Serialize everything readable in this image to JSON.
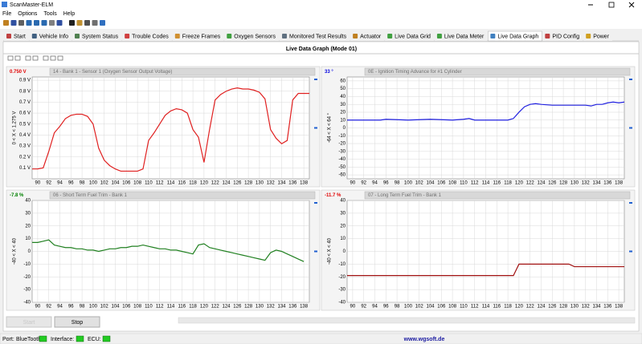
{
  "window": {
    "title": "ScanMaster-ELM"
  },
  "menu": [
    "File",
    "Options",
    "Tools",
    "Help"
  ],
  "tabs": [
    "Start",
    "Vehicle Info",
    "System Status",
    "Trouble Codes",
    "Freeze Frames",
    "Oxygen Sensors",
    "Monitored Test Results",
    "Actuator",
    "Live Data Grid",
    "Live Data Meter",
    "Live Data Graph",
    "PID Config",
    "Power"
  ],
  "panel_title": "Live Data Graph (Mode 01)",
  "chart_data": [
    {
      "type": "line",
      "title": "14 - Bank 1 - Sensor 1 (Oxygen Sensor Output Voltage)",
      "current_value": "0.750 V",
      "ylabel": "0 < X < 1.275 V",
      "xlim": [
        89,
        139
      ],
      "xticks": [
        90,
        92,
        94,
        96,
        98,
        100,
        102,
        104,
        106,
        108,
        110,
        112,
        114,
        116,
        118,
        120,
        122,
        124,
        126,
        128,
        130,
        132,
        134,
        136,
        138
      ],
      "ylim": [
        0,
        0.93
      ],
      "yticks": [
        {
          "value": 0.1,
          "label": "0.1 V"
        },
        {
          "value": 0.2,
          "label": "0.2 V"
        },
        {
          "value": 0.3,
          "label": "0.3 V"
        },
        {
          "value": 0.4,
          "label": "0.4 V"
        },
        {
          "value": 0.5,
          "label": "0.5 V"
        },
        {
          "value": 0.6,
          "label": "0.6 V"
        },
        {
          "value": 0.7,
          "label": "0.7 V"
        },
        {
          "value": 0.8,
          "label": "0.8 V"
        },
        {
          "value": 0.9,
          "label": "0.9 V"
        }
      ],
      "grid": true,
      "value_color": "#e00000",
      "series": [
        {
          "color": "#e02020",
          "x": [
            89,
            90,
            91,
            92,
            93,
            94,
            95,
            96,
            97,
            98,
            99,
            100,
            101,
            102,
            103,
            104,
            105,
            106,
            107,
            108,
            109,
            110,
            111,
            112,
            113,
            114,
            115,
            116,
            117,
            118,
            119,
            120,
            121,
            122,
            123,
            124,
            125,
            126,
            127,
            128,
            129,
            130,
            131,
            132,
            133,
            134,
            135,
            136,
            137,
            138,
            139
          ],
          "values": [
            0.09,
            0.09,
            0.1,
            0.25,
            0.42,
            0.48,
            0.55,
            0.58,
            0.59,
            0.59,
            0.57,
            0.5,
            0.28,
            0.17,
            0.12,
            0.09,
            0.07,
            0.07,
            0.07,
            0.07,
            0.09,
            0.35,
            0.42,
            0.5,
            0.58,
            0.62,
            0.64,
            0.63,
            0.6,
            0.45,
            0.38,
            0.15,
            0.45,
            0.72,
            0.77,
            0.8,
            0.82,
            0.83,
            0.82,
            0.82,
            0.81,
            0.79,
            0.73,
            0.45,
            0.37,
            0.32,
            0.35,
            0.72,
            0.78,
            0.78,
            0.78
          ]
        }
      ]
    },
    {
      "type": "line",
      "title": "0E - Ignition Timing Advance for #1 Cylinder",
      "current_value": "33 °",
      "ylabel": "-64 < X < 64 °",
      "xlim": [
        89,
        139
      ],
      "xticks": [
        90,
        92,
        94,
        96,
        98,
        100,
        102,
        104,
        106,
        108,
        110,
        112,
        114,
        116,
        118,
        120,
        122,
        124,
        126,
        128,
        130,
        132,
        134,
        136,
        138
      ],
      "ylim": [
        -65,
        65
      ],
      "yticks": [
        -60,
        -50,
        -40,
        -30,
        -20,
        -10,
        0,
        10,
        20,
        30,
        40,
        50,
        60
      ],
      "grid": true,
      "value_color": "#0000e0",
      "series": [
        {
          "color": "#2020e0",
          "x": [
            89,
            95,
            96,
            100,
            104,
            108,
            110,
            111,
            112,
            116,
            118,
            119,
            120,
            121,
            122,
            123,
            124,
            126,
            128,
            130,
            132,
            133,
            134,
            135,
            136,
            137,
            138,
            139
          ],
          "values": [
            10,
            10,
            11,
            10,
            11,
            10,
            11,
            12,
            10,
            10,
            10,
            12,
            20,
            27,
            30,
            31,
            30,
            29,
            29,
            29,
            29,
            28,
            30,
            30,
            32,
            33,
            32,
            33
          ]
        }
      ]
    },
    {
      "type": "line",
      "title": "06 - Short Term Fuel Trim - Bank 1",
      "current_value": "-7.8 %",
      "ylabel": "-40 < X < 40",
      "xlim": [
        89,
        139
      ],
      "xticks": [
        90,
        92,
        94,
        96,
        98,
        100,
        102,
        104,
        106,
        108,
        110,
        112,
        114,
        116,
        118,
        120,
        122,
        124,
        126,
        128,
        130,
        132,
        134,
        136,
        138
      ],
      "ylim": [
        -40,
        40
      ],
      "yticks": [
        -40,
        -30,
        -20,
        -10,
        0,
        10,
        20,
        30,
        40
      ],
      "grid": true,
      "value_color": "#008000",
      "series": [
        {
          "color": "#208020",
          "x": [
            89,
            90,
            91,
            92,
            93,
            94,
            95,
            96,
            97,
            98,
            99,
            100,
            101,
            102,
            103,
            104,
            105,
            106,
            107,
            108,
            109,
            110,
            111,
            112,
            113,
            114,
            115,
            116,
            117,
            118,
            119,
            120,
            121,
            122,
            123,
            124,
            125,
            126,
            127,
            128,
            129,
            130,
            131,
            132,
            133,
            134,
            135,
            136,
            137,
            138
          ],
          "values": [
            7,
            7,
            8,
            9,
            5,
            4,
            3,
            3,
            2,
            2,
            1,
            1,
            0,
            1,
            2,
            2,
            3,
            3,
            4,
            4,
            5,
            4,
            3,
            2,
            2,
            1,
            1,
            0,
            -1,
            -2,
            5,
            6,
            3,
            2,
            1,
            0,
            -1,
            -2,
            -3,
            -4,
            -5,
            -6,
            -7,
            -1,
            1,
            0,
            -2,
            -4,
            -6,
            -8
          ]
        }
      ]
    },
    {
      "type": "line",
      "title": "07 - Long Term Fuel Trim - Bank 1",
      "current_value": "-11.7 %",
      "ylabel": "-40 < X < 40",
      "xlim": [
        89,
        139
      ],
      "xticks": [
        90,
        92,
        94,
        96,
        98,
        100,
        102,
        104,
        106,
        108,
        110,
        112,
        114,
        116,
        118,
        120,
        122,
        124,
        126,
        128,
        130,
        132,
        134,
        136,
        138
      ],
      "ylim": [
        -40,
        40
      ],
      "yticks": [
        -40,
        -30,
        -20,
        -10,
        0,
        10,
        20,
        30,
        40
      ],
      "grid": true,
      "value_color": "#e00000",
      "series": [
        {
          "color": "#a01010",
          "x": [
            89,
            119,
            120,
            129,
            130,
            139
          ],
          "values": [
            -19,
            -19,
            -10,
            -10,
            -12,
            -12
          ]
        }
      ]
    }
  ],
  "buttons": [
    "Start",
    "Stop"
  ],
  "status": {
    "port_label": "Port:",
    "port": "BlueTooth",
    "interface_label": "Interface:",
    "ecu_label": "ECU:",
    "website": "www.wgsoft.de"
  }
}
